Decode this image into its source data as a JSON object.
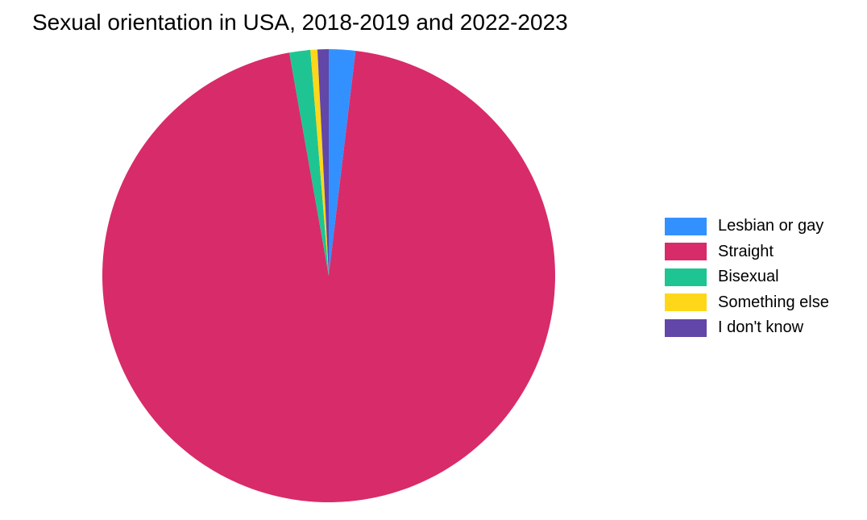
{
  "chart_data": {
    "type": "pie",
    "title": "Sexual orientation in USA, 2018-2019 and 2022-2023",
    "categories": [
      "Lesbian or gay",
      "Straight",
      "Bisexual",
      "Something else",
      "I don't know"
    ],
    "values": [
      1.9,
      95.7,
      1.5,
      0.5,
      0.8
    ],
    "unit": "%",
    "colors": [
      "#3391ff",
      "#d82b69",
      "#1ec592",
      "#ffd71a",
      "#6246a8"
    ],
    "start_angle_deg": 0,
    "direction": "clockwise",
    "legend_position": "right",
    "legend": {
      "items": [
        {
          "label": "Lesbian or gay",
          "color": "#3391ff"
        },
        {
          "label": "Straight",
          "color": "#d82b69"
        },
        {
          "label": "Bisexual",
          "color": "#1ec592"
        },
        {
          "label": "Something else",
          "color": "#ffd71a"
        },
        {
          "label": "I don't know",
          "color": "#6246a8"
        }
      ]
    }
  }
}
